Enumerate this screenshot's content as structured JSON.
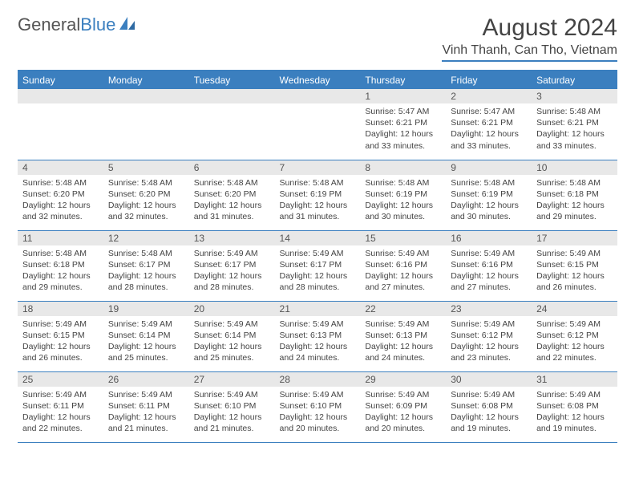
{
  "brand": {
    "part1": "General",
    "part2": "Blue"
  },
  "title": "August 2024",
  "location": "Vinh Thanh, Can Tho, Vietnam",
  "theme": {
    "accent": "#3b7fbf",
    "header_bg": "#3b7fbf",
    "header_text": "#ffffff",
    "daynum_bg": "#e8e8e8",
    "text_color": "#444444",
    "border_color": "#3b7fbf"
  },
  "day_headers": [
    "Sunday",
    "Monday",
    "Tuesday",
    "Wednesday",
    "Thursday",
    "Friday",
    "Saturday"
  ],
  "weeks": [
    [
      null,
      null,
      null,
      null,
      {
        "n": "1",
        "sunrise": "5:47 AM",
        "sunset": "6:21 PM",
        "daylight": "12 hours and 33 minutes."
      },
      {
        "n": "2",
        "sunrise": "5:47 AM",
        "sunset": "6:21 PM",
        "daylight": "12 hours and 33 minutes."
      },
      {
        "n": "3",
        "sunrise": "5:48 AM",
        "sunset": "6:21 PM",
        "daylight": "12 hours and 33 minutes."
      }
    ],
    [
      {
        "n": "4",
        "sunrise": "5:48 AM",
        "sunset": "6:20 PM",
        "daylight": "12 hours and 32 minutes."
      },
      {
        "n": "5",
        "sunrise": "5:48 AM",
        "sunset": "6:20 PM",
        "daylight": "12 hours and 32 minutes."
      },
      {
        "n": "6",
        "sunrise": "5:48 AM",
        "sunset": "6:20 PM",
        "daylight": "12 hours and 31 minutes."
      },
      {
        "n": "7",
        "sunrise": "5:48 AM",
        "sunset": "6:19 PM",
        "daylight": "12 hours and 31 minutes."
      },
      {
        "n": "8",
        "sunrise": "5:48 AM",
        "sunset": "6:19 PM",
        "daylight": "12 hours and 30 minutes."
      },
      {
        "n": "9",
        "sunrise": "5:48 AM",
        "sunset": "6:19 PM",
        "daylight": "12 hours and 30 minutes."
      },
      {
        "n": "10",
        "sunrise": "5:48 AM",
        "sunset": "6:18 PM",
        "daylight": "12 hours and 29 minutes."
      }
    ],
    [
      {
        "n": "11",
        "sunrise": "5:48 AM",
        "sunset": "6:18 PM",
        "daylight": "12 hours and 29 minutes."
      },
      {
        "n": "12",
        "sunrise": "5:48 AM",
        "sunset": "6:17 PM",
        "daylight": "12 hours and 28 minutes."
      },
      {
        "n": "13",
        "sunrise": "5:49 AM",
        "sunset": "6:17 PM",
        "daylight": "12 hours and 28 minutes."
      },
      {
        "n": "14",
        "sunrise": "5:49 AM",
        "sunset": "6:17 PM",
        "daylight": "12 hours and 28 minutes."
      },
      {
        "n": "15",
        "sunrise": "5:49 AM",
        "sunset": "6:16 PM",
        "daylight": "12 hours and 27 minutes."
      },
      {
        "n": "16",
        "sunrise": "5:49 AM",
        "sunset": "6:16 PM",
        "daylight": "12 hours and 27 minutes."
      },
      {
        "n": "17",
        "sunrise": "5:49 AM",
        "sunset": "6:15 PM",
        "daylight": "12 hours and 26 minutes."
      }
    ],
    [
      {
        "n": "18",
        "sunrise": "5:49 AM",
        "sunset": "6:15 PM",
        "daylight": "12 hours and 26 minutes."
      },
      {
        "n": "19",
        "sunrise": "5:49 AM",
        "sunset": "6:14 PM",
        "daylight": "12 hours and 25 minutes."
      },
      {
        "n": "20",
        "sunrise": "5:49 AM",
        "sunset": "6:14 PM",
        "daylight": "12 hours and 25 minutes."
      },
      {
        "n": "21",
        "sunrise": "5:49 AM",
        "sunset": "6:13 PM",
        "daylight": "12 hours and 24 minutes."
      },
      {
        "n": "22",
        "sunrise": "5:49 AM",
        "sunset": "6:13 PM",
        "daylight": "12 hours and 24 minutes."
      },
      {
        "n": "23",
        "sunrise": "5:49 AM",
        "sunset": "6:12 PM",
        "daylight": "12 hours and 23 minutes."
      },
      {
        "n": "24",
        "sunrise": "5:49 AM",
        "sunset": "6:12 PM",
        "daylight": "12 hours and 22 minutes."
      }
    ],
    [
      {
        "n": "25",
        "sunrise": "5:49 AM",
        "sunset": "6:11 PM",
        "daylight": "12 hours and 22 minutes."
      },
      {
        "n": "26",
        "sunrise": "5:49 AM",
        "sunset": "6:11 PM",
        "daylight": "12 hours and 21 minutes."
      },
      {
        "n": "27",
        "sunrise": "5:49 AM",
        "sunset": "6:10 PM",
        "daylight": "12 hours and 21 minutes."
      },
      {
        "n": "28",
        "sunrise": "5:49 AM",
        "sunset": "6:10 PM",
        "daylight": "12 hours and 20 minutes."
      },
      {
        "n": "29",
        "sunrise": "5:49 AM",
        "sunset": "6:09 PM",
        "daylight": "12 hours and 20 minutes."
      },
      {
        "n": "30",
        "sunrise": "5:49 AM",
        "sunset": "6:08 PM",
        "daylight": "12 hours and 19 minutes."
      },
      {
        "n": "31",
        "sunrise": "5:49 AM",
        "sunset": "6:08 PM",
        "daylight": "12 hours and 19 minutes."
      }
    ]
  ],
  "labels": {
    "sunrise": "Sunrise:",
    "sunset": "Sunset:",
    "daylight": "Daylight:"
  }
}
